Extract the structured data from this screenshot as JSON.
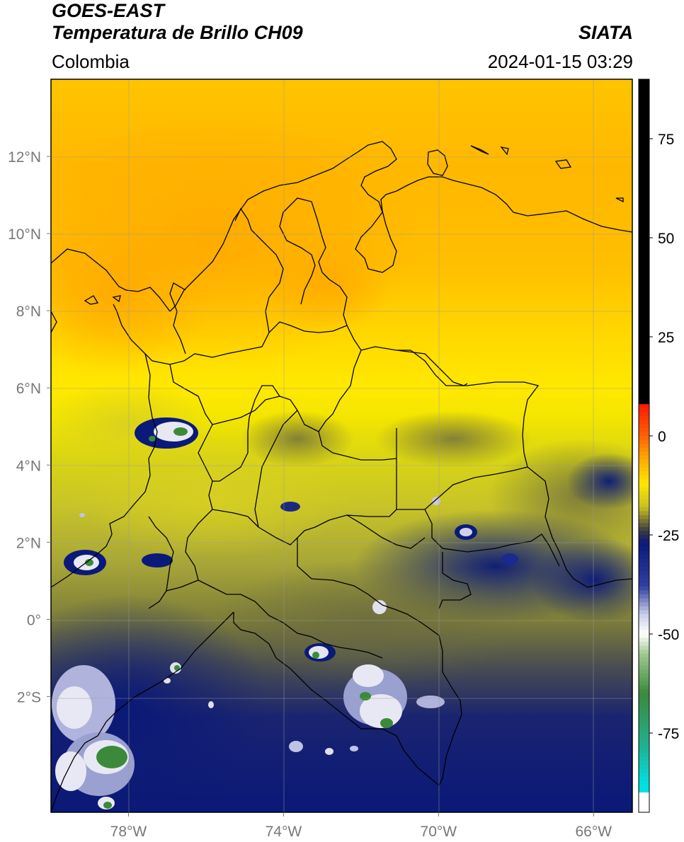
{
  "header": {
    "satellite": "GOES-EAST",
    "product": "Temperatura de Brillo CH09",
    "region": "Colombia",
    "organization": "SIATA",
    "datetime": "2024-01-15 03:29"
  },
  "axes": {
    "lon_ticks": [
      {
        "value": -78,
        "label": "78°W"
      },
      {
        "value": -74,
        "label": "74°W"
      },
      {
        "value": -70,
        "label": "70°W"
      },
      {
        "value": -66,
        "label": "66°W"
      }
    ],
    "lat_ticks": [
      {
        "value": 12,
        "label": "12°N"
      },
      {
        "value": 10,
        "label": "10°N"
      },
      {
        "value": 8,
        "label": "8°N"
      },
      {
        "value": 6,
        "label": "6°N"
      },
      {
        "value": 4,
        "label": "4°N"
      },
      {
        "value": 2,
        "label": "2°N"
      },
      {
        "value": 0,
        "label": "0°"
      },
      {
        "value": -2,
        "label": "2°S"
      }
    ],
    "lon_range": [
      -80,
      -65
    ],
    "lat_range": [
      -5,
      14
    ]
  },
  "colorbar": {
    "range": [
      -95,
      90
    ],
    "ticks": [
      {
        "value": 75,
        "label": "75"
      },
      {
        "value": 50,
        "label": "50"
      },
      {
        "value": 25,
        "label": "25"
      },
      {
        "value": 0,
        "label": "0"
      },
      {
        "value": -25,
        "label": "-25"
      },
      {
        "value": -50,
        "label": "-50"
      },
      {
        "value": -75,
        "label": "-75"
      }
    ]
  },
  "colors": {
    "warm_orange": "#ffb000",
    "yellow": "#ffe600",
    "olive": "#8a8a30",
    "navy": "#0a1a7a",
    "cloud_white": "#f2f2f8",
    "cold_green": "#3a8a3a",
    "cyan": "#00e0e0",
    "red": "#ff1a00",
    "black": "#000000"
  }
}
